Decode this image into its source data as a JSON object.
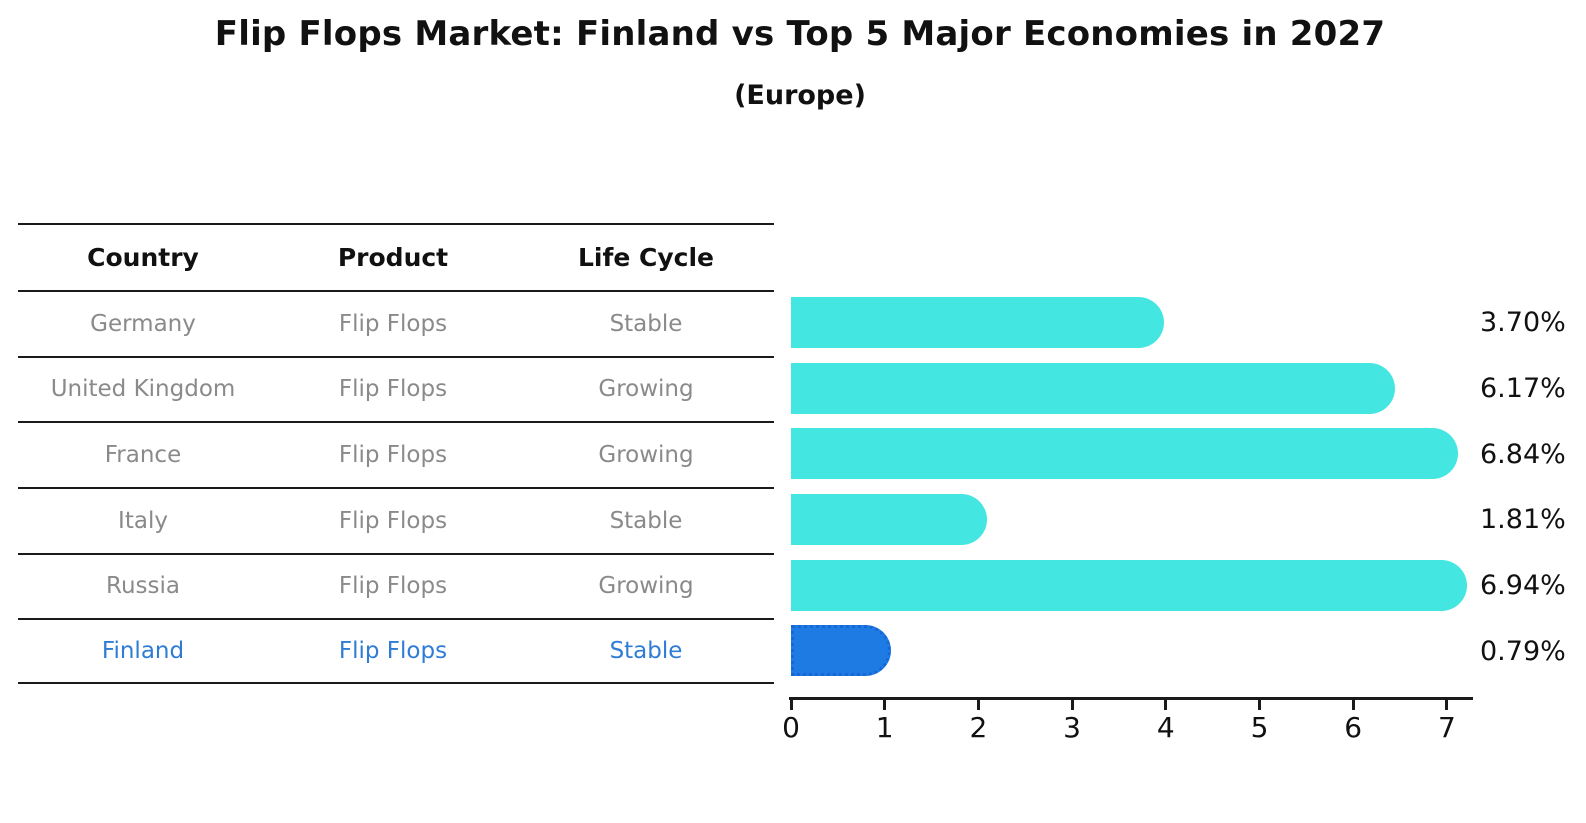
{
  "title": "Flip Flops Market: Finland vs Top 5 Major Economies in 2027",
  "subtitle": "(Europe)",
  "table": {
    "headers": [
      "Country",
      "Product",
      "Life Cycle"
    ],
    "rows": [
      {
        "country": "Germany",
        "product": "Flip Flops",
        "life_cycle": "Stable",
        "highlighted": false
      },
      {
        "country": "United Kingdom",
        "product": "Flip Flops",
        "life_cycle": "Growing",
        "highlighted": false
      },
      {
        "country": "France",
        "product": "Flip Flops",
        "life_cycle": "Growing",
        "highlighted": false
      },
      {
        "country": "Italy",
        "product": "Flip Flops",
        "life_cycle": "Stable",
        "highlighted": false
      },
      {
        "country": "Russia",
        "product": "Flip Flops",
        "life_cycle": "Growing",
        "highlighted": false
      },
      {
        "country": "Finland",
        "product": "Flip Flops",
        "life_cycle": "Stable",
        "highlighted": true
      }
    ]
  },
  "chart_data": {
    "type": "bar",
    "orientation": "horizontal",
    "title": "Flip Flops Market: Finland vs Top 5 Major Economies in 2027",
    "subtitle": "(Europe)",
    "categories": [
      "Germany",
      "United Kingdom",
      "France",
      "Italy",
      "Russia",
      "Finland"
    ],
    "values": [
      3.7,
      6.17,
      6.84,
      1.81,
      6.94,
      0.79
    ],
    "value_labels": [
      "3.70%",
      "6.17%",
      "6.84%",
      "1.81%",
      "6.94%",
      "0.79%"
    ],
    "highlight_index": 5,
    "x_ticks": [
      0,
      1,
      2,
      3,
      4,
      5,
      6,
      7
    ],
    "xlim": [
      0,
      7.3
    ],
    "grid": false,
    "legend": false,
    "bar_color": "#43E6E0",
    "highlight_bar_color": "#1E7BE4",
    "highlight_bar_border": "dotted"
  },
  "colors": {
    "background": "#FFFFFF",
    "bar": "#43E6E0",
    "highlight_bar": "#1E7BE4",
    "highlight_text": "#2E7CD6",
    "table_text": "#8A8A8A",
    "heading_text": "#111111",
    "line": "#1A1A1A"
  }
}
